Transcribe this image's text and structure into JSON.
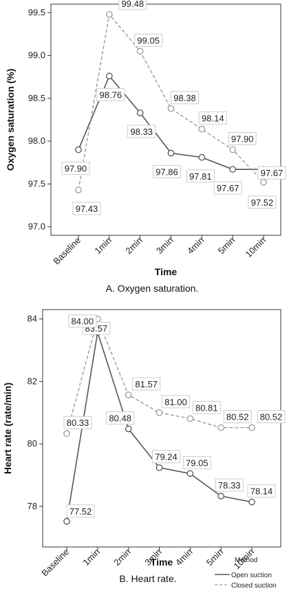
{
  "chart_data": [
    {
      "type": "line",
      "caption": "A. Oxygen saturation.",
      "xlabel": "Time",
      "ylabel": "Oxygen saturation (%)",
      "categories": [
        "Baseline",
        "1min",
        "2min",
        "3min",
        "4min",
        "5min",
        "10min"
      ],
      "ylim": [
        96.9,
        99.6
      ],
      "yticks": [
        "97.0",
        "97.5",
        "98.0",
        "98.5",
        "99.0",
        "99.5"
      ],
      "series": [
        {
          "name": "Open suction",
          "values": [
            97.9,
            98.76,
            98.33,
            97.86,
            97.81,
            97.67,
            97.67
          ],
          "labels": [
            "97.90",
            "98.76",
            "98.33",
            "97.86",
            "97.81",
            "97.67",
            "97.67"
          ]
        },
        {
          "name": "Closed suction",
          "values": [
            97.43,
            99.48,
            99.05,
            98.38,
            98.14,
            97.9,
            97.52
          ],
          "labels": [
            "97.43",
            "99.48",
            "99.05",
            "98.38",
            "98.14",
            "97.90",
            "97.52"
          ]
        }
      ],
      "grid": false
    },
    {
      "type": "line",
      "caption": "B. Heart rate.",
      "xlabel": "Time",
      "ylabel": "Heart rate (rate/min)",
      "categories": [
        "Baseline",
        "1min",
        "2min",
        "3min",
        "4min",
        "5min",
        "10min"
      ],
      "ylim": [
        76.7,
        84.3
      ],
      "yticks": [
        "78",
        "80",
        "82",
        "84"
      ],
      "series": [
        {
          "name": "Open suction",
          "values": [
            77.52,
            83.57,
            80.48,
            79.24,
            79.05,
            78.33,
            78.14
          ],
          "labels": [
            "77.52",
            "83.57",
            "80.48",
            "79.24",
            "79.05",
            "78.33",
            "78.14"
          ]
        },
        {
          "name": "Closed suction",
          "values": [
            80.33,
            84.0,
            81.57,
            81.0,
            80.81,
            80.52,
            80.52
          ],
          "labels": [
            "80.33",
            "84.00",
            "81.57",
            "81.00",
            "80.81",
            "80.52",
            "80.52"
          ]
        }
      ],
      "legend": {
        "title": "Method",
        "entries": [
          "Open suction",
          "Closed suction"
        ],
        "position": "bottom-right"
      },
      "grid": false
    }
  ],
  "colors": {
    "open_suction": "#555555",
    "closed_suction": "#9a9a9a",
    "axis": "#333333",
    "label_box": "#cccccc"
  }
}
